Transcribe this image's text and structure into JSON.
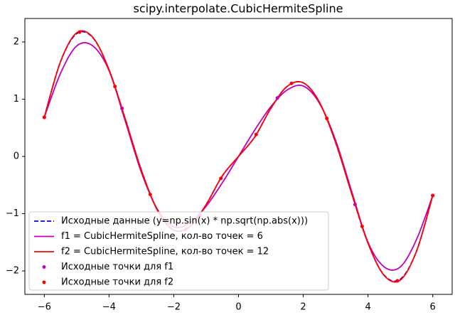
{
  "chart_data": {
    "type": "line",
    "title": "scipy.interpolate.CubicHermiteSpline",
    "xlim": [
      -6.6,
      6.6
    ],
    "ylim": [
      -2.41,
      2.41
    ],
    "xticks": [
      {
        "value": -6,
        "label": "−6"
      },
      {
        "value": -4,
        "label": "−4"
      },
      {
        "value": -2,
        "label": "−2"
      },
      0,
      2,
      4,
      6
    ],
    "yticks": [
      {
        "value": -2,
        "label": "−2"
      },
      {
        "value": -1,
        "label": "−1"
      },
      0,
      1,
      2
    ],
    "legend": "lower left",
    "series": [
      {
        "name": "Исходные данные (y=np.sin(x) * np.sqrt(np.abs(x)))",
        "color": "#0000ff",
        "style": "dashed",
        "x": [
          -6,
          -5.5,
          -5,
          -4.5,
          -4,
          -3.5,
          -3,
          -2.5,
          -2,
          -1.5,
          -1,
          -0.5,
          0,
          0.5,
          1,
          1.5,
          2,
          2.5,
          3,
          3.5,
          4,
          4.5,
          5,
          5.5,
          6
        ],
        "values": [
          0.684,
          1.654,
          2.144,
          2.074,
          1.514,
          0.656,
          -0.244,
          -0.946,
          -1.286,
          -1.222,
          -0.841,
          -0.339,
          0,
          0.339,
          0.841,
          1.222,
          1.286,
          0.946,
          0.244,
          -0.656,
          -1.514,
          -2.074,
          -2.144,
          -1.654,
          -0.684
        ]
      },
      {
        "name": "f1 = CubicHermiteSpline, кол-во точек = 6",
        "color": "#bf00bf",
        "style": "solid",
        "x": [
          -6,
          -5.5,
          -5,
          -4.5,
          -4,
          -3.5,
          -3,
          -2.5,
          -2,
          -1.5,
          -1,
          -0.5,
          0,
          0.5,
          1,
          1.5,
          2,
          2.5,
          3,
          3.5,
          4,
          4.5,
          5,
          5.5,
          6
        ],
        "values": [
          0.684,
          1.45,
          1.93,
          1.93,
          1.5,
          0.62,
          -0.28,
          -0.93,
          -1.23,
          -1.16,
          -0.87,
          -0.46,
          0,
          0.46,
          0.87,
          1.16,
          1.23,
          0.93,
          0.28,
          -0.62,
          -1.5,
          -1.93,
          -1.93,
          -1.45,
          -0.684
        ]
      },
      {
        "name": "f2 = CubicHermiteSpline, кол-во точек = 12",
        "color": "#ff0000",
        "style": "solid",
        "x": [
          -6,
          -5.5,
          -5,
          -4.5,
          -4,
          -3.5,
          -3,
          -2.5,
          -2,
          -1.5,
          -1,
          -0.5,
          0,
          0.5,
          1,
          1.5,
          2,
          2.5,
          3,
          3.5,
          4,
          4.5,
          5,
          5.5,
          6
        ],
        "values": [
          0.684,
          1.654,
          2.16,
          2.08,
          1.514,
          0.656,
          -0.244,
          -0.946,
          -1.286,
          -1.222,
          -0.841,
          -0.339,
          0,
          0.339,
          0.841,
          1.222,
          1.286,
          0.946,
          0.244,
          -0.656,
          -1.514,
          -2.08,
          -2.16,
          -1.654,
          -0.684
        ]
      },
      {
        "name": "Исходные точки для f1",
        "color": "#bf00bf",
        "style": "points",
        "x": [
          -6,
          -3.6,
          -1.2,
          1.2,
          3.6,
          6
        ],
        "values": [
          0.684,
          0.84,
          -1.021,
          1.021,
          -0.84,
          -0.684
        ]
      },
      {
        "name": "Исходные точки для f2",
        "color": "#ff0000",
        "style": "points",
        "x": [
          -6,
          -4.909,
          -3.818,
          -2.727,
          -1.636,
          -0.545,
          0.545,
          1.636,
          2.727,
          3.818,
          4.909,
          6
        ],
        "values": [
          0.684,
          2.173,
          1.222,
          -0.665,
          -1.276,
          -0.383,
          0.383,
          1.276,
          0.665,
          -1.222,
          -2.173,
          -0.684
        ]
      }
    ]
  }
}
